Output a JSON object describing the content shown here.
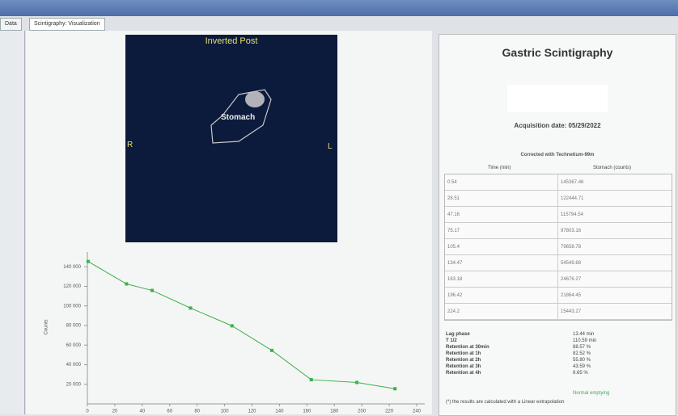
{
  "tabs": [
    "Data",
    "Scintigraphy: Visualization"
  ],
  "image_panel": {
    "title": "Inverted Post",
    "region": "Stomach",
    "left_marker": "R",
    "right_marker": "L"
  },
  "chart_data": {
    "type": "line",
    "y_label": "Counts",
    "x": [
      0.54,
      28.51,
      47.16,
      75.17,
      105.4,
      134.47,
      163.18,
      196.42,
      224.2
    ],
    "series": [
      {
        "name": "Stomach",
        "color": "#3cb04a",
        "values": [
          145367.46,
          122444.71,
          115794.54,
          97803.16,
          79658.78,
          54549.88,
          24676.27,
          21864.45,
          15443.27
        ]
      }
    ],
    "xlim": [
      0,
      240
    ],
    "xticks": [
      0,
      20,
      40,
      60,
      80,
      100,
      120,
      140,
      160,
      180,
      200,
      220,
      240
    ],
    "ylim": [
      0,
      155000
    ],
    "yticks": [
      {
        "value": 20000,
        "label": "20 000"
      },
      {
        "value": 40000,
        "label": "40 000"
      },
      {
        "value": 60000,
        "label": "60 000"
      },
      {
        "value": 80000,
        "label": "80 000"
      },
      {
        "value": 100000,
        "label": "100 000"
      },
      {
        "value": 120000,
        "label": "120 000"
      },
      {
        "value": 140000,
        "label": "140 000"
      }
    ],
    "grid": false
  },
  "report": {
    "title": "Gastric Scintigraphy",
    "acquisition_date": "Acquisition date: 05/29/2022",
    "table_caption": "Corrected with Technetium-99m",
    "headers": [
      "Time (min)",
      "Stomach (counts)"
    ],
    "results": [
      [
        "Lag phase",
        "13.44 min"
      ],
      [
        "T 1/2",
        "110.59 min"
      ],
      [
        "Retention at 30min",
        "88.57 %"
      ],
      [
        "Retention at 1h",
        "82.52 %"
      ],
      [
        "Retention at 2h",
        "55.80 %"
      ],
      [
        "Retention at 3h",
        "43.59 %"
      ],
      [
        "Retention at 4h",
        "6.65 %"
      ]
    ],
    "status": "Normal emptying",
    "footnote": "(*) the results are calculated with a Linear extrapolation"
  }
}
